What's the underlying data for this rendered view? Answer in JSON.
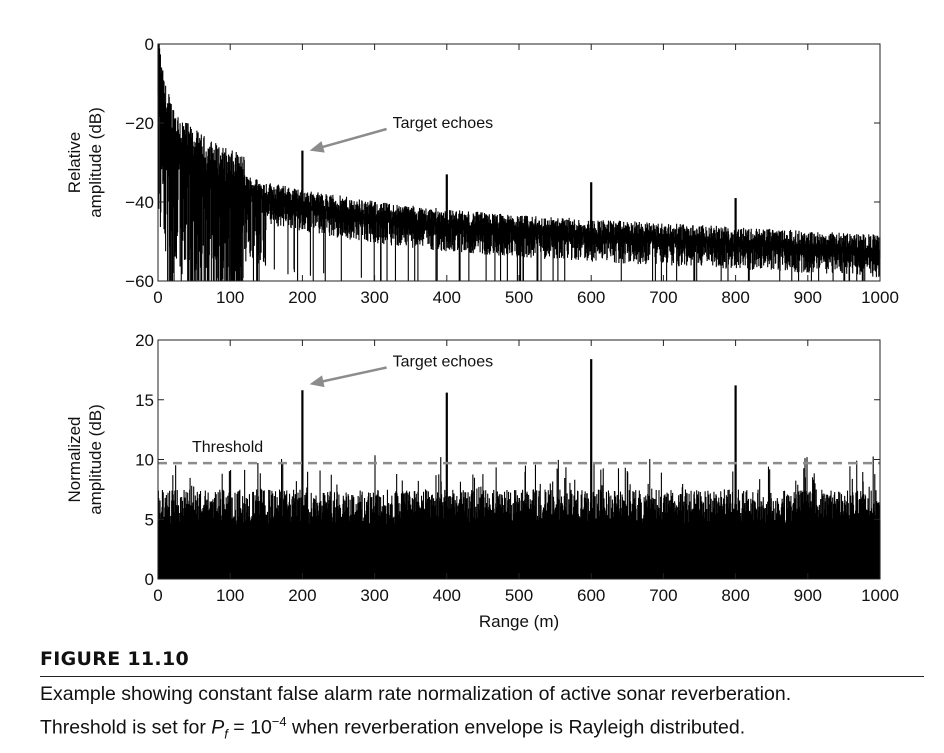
{
  "figure": {
    "label": "FIGURE 11.10",
    "caption": {
      "line1": "Example showing constant false alarm rate normalization of active sonar reverberation.",
      "line2_before": "Threshold is set for ",
      "pf_symbol": "P",
      "pf_subscript": "f",
      "line2_eq": " = 10",
      "line2_exp": "−4",
      "line2_after": " when reverberation envelope is Rayleigh distributed."
    }
  },
  "colors": {
    "signal": "#000000",
    "threshold_line": "#8c8c8c",
    "annotation_arrow": "#8c8c8c"
  },
  "chart_data": [
    {
      "type": "line",
      "panel": "top",
      "ylabel_line1": "Relative",
      "ylabel_line2": "amplitude (dB)",
      "xlabel": "",
      "xlim": [
        0,
        1000
      ],
      "ylim": [
        -60,
        0
      ],
      "xticks": [
        0,
        100,
        200,
        300,
        400,
        500,
        600,
        700,
        800,
        900,
        1000
      ],
      "xtick_labels": [
        "0",
        "100",
        "200",
        "300",
        "400",
        "500",
        "600",
        "700",
        "800",
        "900",
        "1000"
      ],
      "yticks": [
        0,
        -20,
        -40,
        -60
      ],
      "ytick_labels": [
        "0",
        "−20",
        "−40",
        "−60"
      ],
      "grid": false,
      "series": [
        {
          "description_points_x": [
            0,
            2,
            5,
            10,
            20,
            40,
            60,
            100,
            150,
            200,
            300,
            400,
            500,
            600,
            700,
            800,
            900,
            1000
          ],
          "envelope_mean_db": [
            0,
            -8,
            -14,
            -19,
            -24,
            -29,
            -32,
            -36,
            -39,
            -41,
            -44,
            -46,
            -47.5,
            -48.5,
            -49.5,
            -50.5,
            -51.5,
            -52.5
          ],
          "noise_spread_db": 6
        }
      ],
      "peaks": [
        {
          "x": 200,
          "y": -27
        },
        {
          "x": 400,
          "y": -33
        },
        {
          "x": 600,
          "y": -35
        },
        {
          "x": 800,
          "y": -39
        }
      ],
      "annotation": {
        "text": "Target echoes",
        "text_x": 300,
        "text_y": -20,
        "arrow_to_x": 210,
        "arrow_to_y": -27
      }
    },
    {
      "type": "line",
      "panel": "bottom",
      "ylabel_line1": "Normalized",
      "ylabel_line2": "amplitude (dB)",
      "xlabel": "Range (m)",
      "xlim": [
        0,
        1000
      ],
      "ylim": [
        0,
        20
      ],
      "xticks": [
        0,
        100,
        200,
        300,
        400,
        500,
        600,
        700,
        800,
        900,
        1000
      ],
      "xtick_labels": [
        "0",
        "100",
        "200",
        "300",
        "400",
        "500",
        "600",
        "700",
        "800",
        "900",
        "1000"
      ],
      "yticks": [
        0,
        5,
        10,
        15,
        20
      ],
      "ytick_labels": [
        "0",
        "5",
        "10",
        "15",
        "20"
      ],
      "grid": false,
      "series": [
        {
          "baseline_db": 4.5,
          "noise_spread_db": 3
        }
      ],
      "peaks": [
        {
          "x": 200,
          "y": 15.8
        },
        {
          "x": 400,
          "y": 15.6
        },
        {
          "x": 600,
          "y": 18.4
        },
        {
          "x": 800,
          "y": 16.2
        }
      ],
      "threshold": {
        "label": "Threshold",
        "value": 9.7
      },
      "annotation": {
        "text": "Target echoes",
        "text_x": 300,
        "text_y": 18.2,
        "arrow_to_x": 210,
        "arrow_to_y": 16.3
      }
    }
  ]
}
